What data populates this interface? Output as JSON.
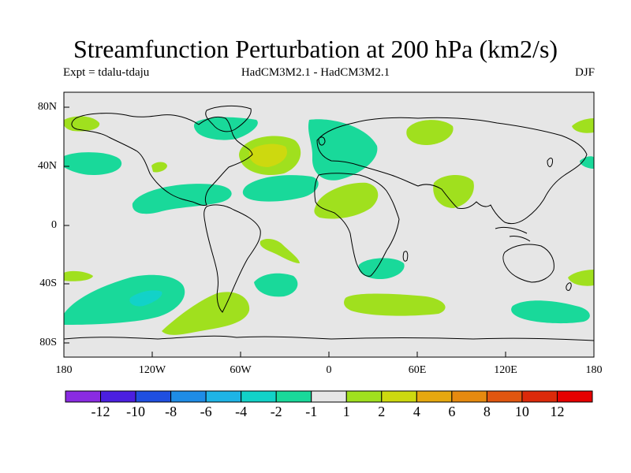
{
  "title": "Streamfunction Perturbation at 200 hPa (km2/s)",
  "experiment": "Expt = tdalu-tdaju",
  "models": "HadCM3M2.1 - HadCM3M2.1",
  "season": "DJF",
  "y_axis_labels": [
    "80N",
    "40N",
    "0",
    "40S",
    "80S"
  ],
  "x_axis_labels": [
    "180",
    "120W",
    "60W",
    "0",
    "60E",
    "120E",
    "180"
  ],
  "colorbar": {
    "labels": [
      "-12",
      "-10",
      "-8",
      "-6",
      "-4",
      "-2",
      "-1",
      "1",
      "2",
      "4",
      "6",
      "8",
      "10",
      "12"
    ],
    "colors": [
      "#8a2be2",
      "#4b1fe0",
      "#1f4fe0",
      "#1e8ce6",
      "#1eb4e6",
      "#12d2c8",
      "#19d99a",
      "#e6e6e6",
      "#a0e01e",
      "#cdd90f",
      "#e6a80f",
      "#e68a0f",
      "#e0560f",
      "#dc2a0a",
      "#e60000"
    ]
  },
  "map_colors": {
    "background": "#e6e6e6",
    "land_outline": "#000000"
  }
}
